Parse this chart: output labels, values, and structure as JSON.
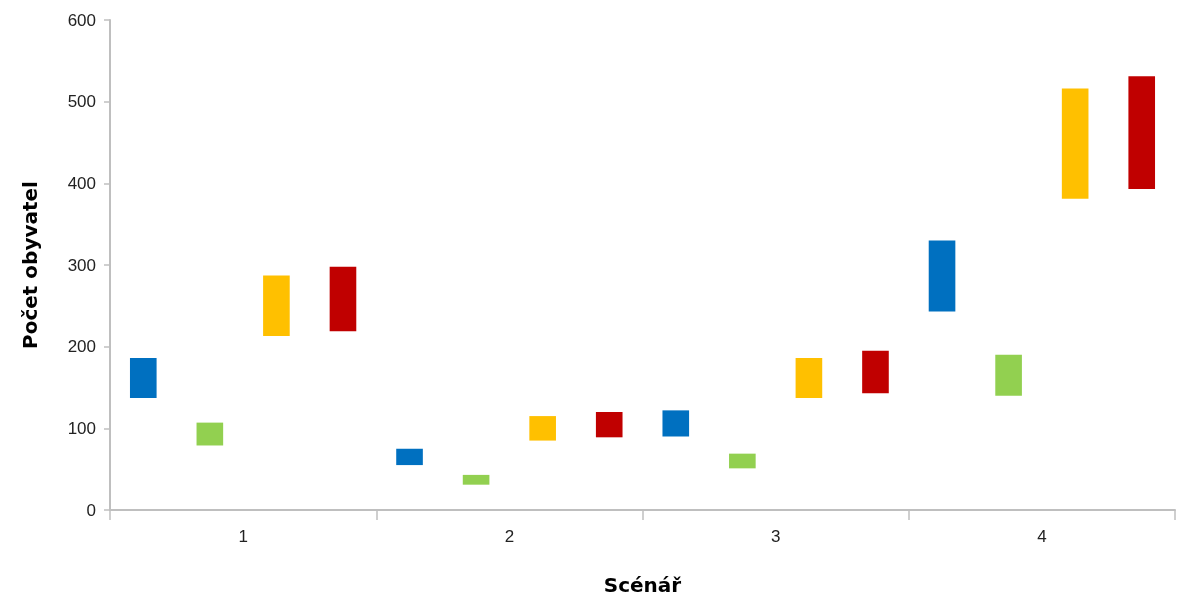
{
  "chart_data": {
    "type": "bar",
    "xlabel": "Scénář",
    "ylabel": "Počet obyvatel",
    "categories": [
      "1",
      "2",
      "3",
      "4"
    ],
    "series": [
      {
        "color": "#0070c0",
        "base": [
          137,
          55,
          90,
          243
        ],
        "values": [
          49,
          20,
          32,
          87
        ]
      },
      {
        "color": "#92d050",
        "base": [
          79,
          31,
          51,
          140
        ],
        "values": [
          28,
          12,
          18,
          50
        ]
      },
      {
        "color": "#ffc000",
        "base": [
          213,
          85,
          137,
          381
        ],
        "values": [
          74,
          30,
          49,
          135
        ]
      },
      {
        "color": "#c00000",
        "base": [
          219,
          89,
          143,
          393
        ],
        "values": [
          79,
          31,
          52,
          138
        ]
      }
    ],
    "ylim": [
      0,
      600
    ],
    "yticks": [
      0,
      100,
      200,
      300,
      400,
      500,
      600
    ]
  }
}
